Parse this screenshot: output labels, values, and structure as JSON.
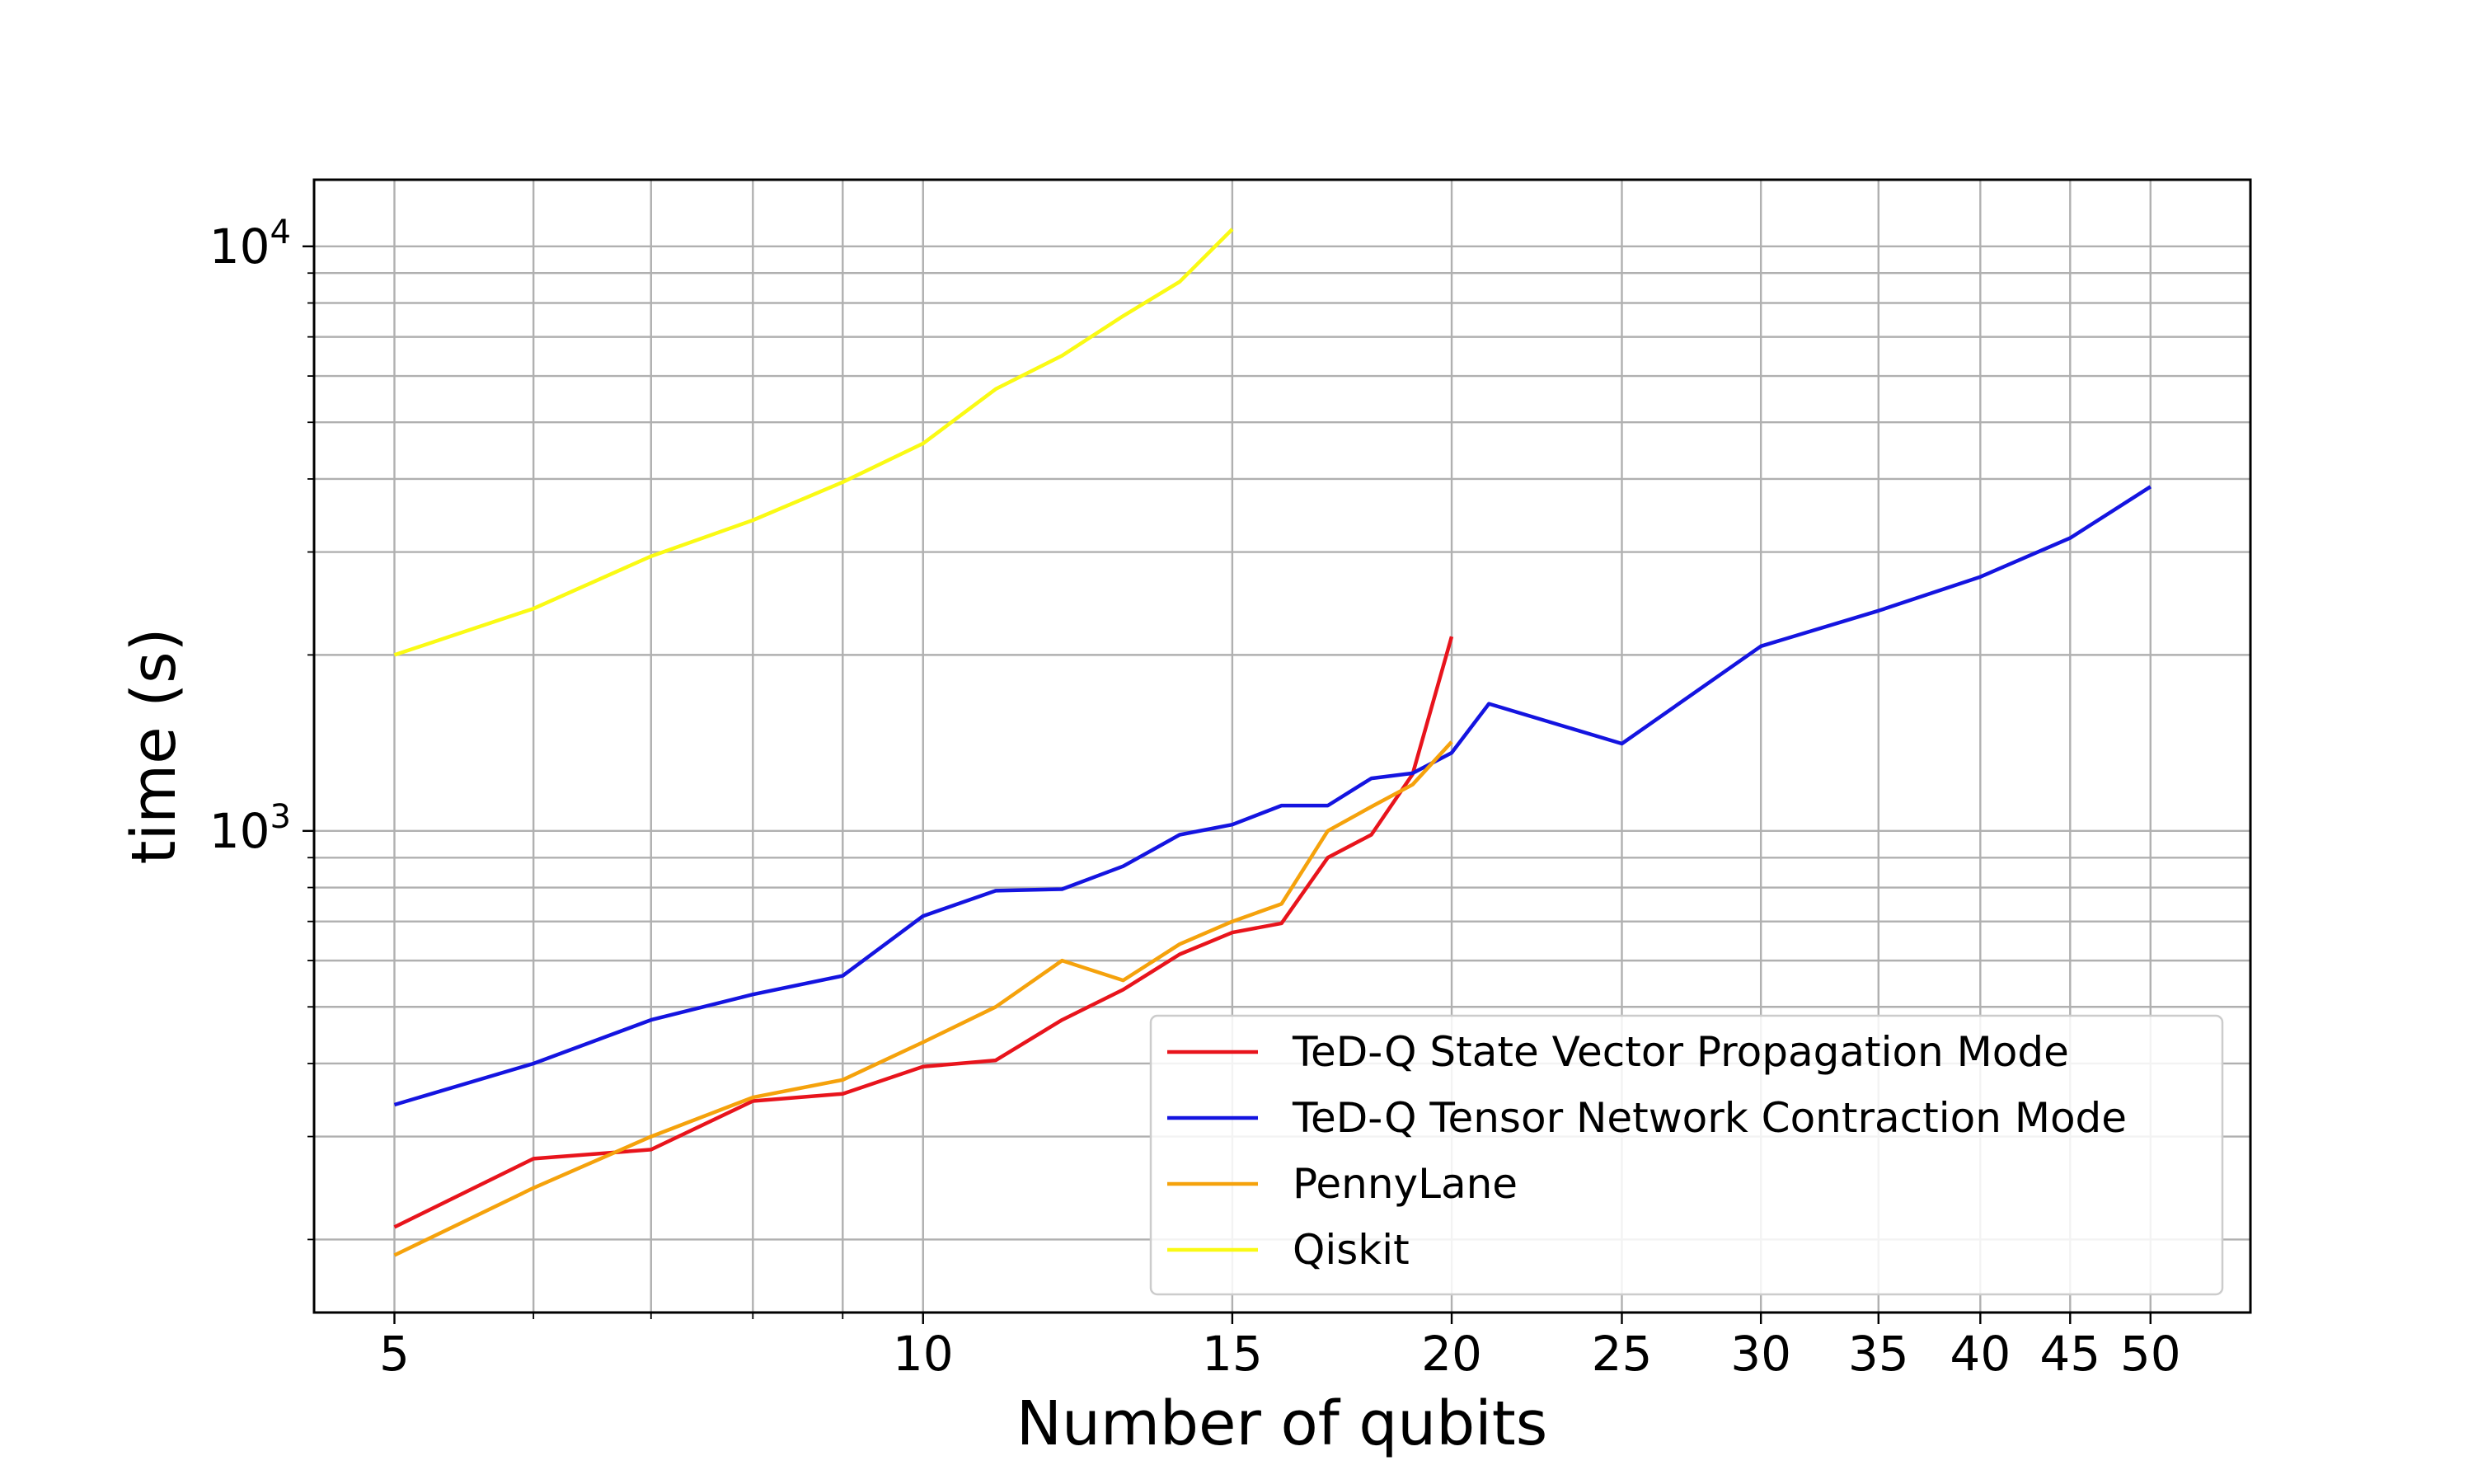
{
  "chart_data": {
    "type": "line",
    "title": "",
    "xlabel": "Number of qubits",
    "ylabel": "time (s)",
    "xscale": "log",
    "yscale": "log",
    "xlim": [
      4.5,
      57
    ],
    "ylim": [
      150,
      13000
    ],
    "xticks": [
      {
        "value": 5,
        "label": "5"
      },
      {
        "value": 10,
        "label": "10"
      },
      {
        "value": 15,
        "label": "15"
      },
      {
        "value": 20,
        "label": "20"
      },
      {
        "value": 25,
        "label": "25"
      },
      {
        "value": 30,
        "label": "30"
      },
      {
        "value": 35,
        "label": "35"
      },
      {
        "value": 40,
        "label": "40"
      },
      {
        "value": 45,
        "label": "45"
      },
      {
        "value": 50,
        "label": "50"
      }
    ],
    "x_minor_ticks": [
      6,
      7,
      8,
      9
    ],
    "yticks": [
      {
        "value": 1000,
        "base": "10",
        "exp": "3"
      },
      {
        "value": 10000,
        "base": "10",
        "exp": "4"
      }
    ],
    "y_minor_ticks": [
      200,
      300,
      400,
      500,
      600,
      700,
      800,
      900,
      2000,
      3000,
      4000,
      5000,
      6000,
      7000,
      8000,
      9000
    ],
    "grid": true,
    "legend_position": "lower right",
    "series": [
      {
        "name": "TeD-Q State Vector Propagation Mode",
        "color": "#e8141c",
        "x": [
          5,
          6,
          7,
          8,
          9,
          10,
          11,
          12,
          13,
          14,
          15,
          16,
          17,
          18,
          19,
          20
        ],
        "y": [
          210,
          275,
          285,
          345,
          355,
          395,
          405,
          475,
          535,
          615,
          670,
          695,
          900,
          985,
          1250,
          2150
        ]
      },
      {
        "name": "TeD-Q Tensor Network Contraction Mode",
        "color": "#1414e0",
        "x": [
          5,
          6,
          7,
          8,
          9,
          10,
          11,
          12,
          13,
          14,
          15,
          16,
          17,
          18,
          19,
          20,
          21,
          25,
          30,
          35,
          40,
          45,
          50
        ],
        "y": [
          340,
          400,
          475,
          525,
          565,
          715,
          790,
          795,
          870,
          985,
          1025,
          1105,
          1105,
          1230,
          1255,
          1360,
          1650,
          1410,
          2070,
          2380,
          2720,
          3170,
          3880
        ]
      },
      {
        "name": "PennyLane",
        "color": "#f5a20c",
        "x": [
          5,
          6,
          7,
          8,
          9,
          10,
          11,
          12,
          13,
          14,
          15,
          16,
          17,
          18,
          19,
          20
        ],
        "y": [
          188,
          245,
          300,
          350,
          375,
          435,
          500,
          600,
          555,
          640,
          700,
          750,
          1000,
          1100,
          1200,
          1420
        ]
      },
      {
        "name": "Qiskit",
        "color": "#fafa14",
        "x": [
          5,
          6,
          7,
          8,
          9,
          10,
          11,
          12,
          13,
          14,
          15
        ],
        "y": [
          2000,
          2400,
          2950,
          3400,
          3950,
          4600,
          5700,
          6500,
          7600,
          8700,
          10700
        ]
      }
    ]
  }
}
